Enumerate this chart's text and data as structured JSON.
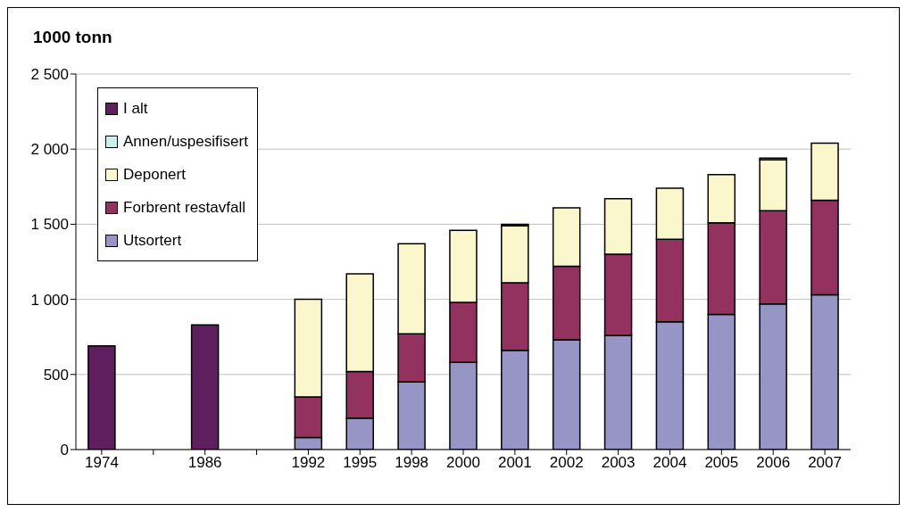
{
  "chart_data": {
    "type": "bar",
    "title": "1000 tonn",
    "stacked": true,
    "legend": "top left",
    "grid": "y",
    "categories": [
      "1974",
      null,
      "1986",
      null,
      "1992",
      "1995",
      "1998",
      "2000",
      "2001",
      "2002",
      "2003",
      "2004",
      "2005",
      "2006",
      "2007"
    ],
    "ylim": [
      0,
      2500
    ],
    "yticks": [
      0,
      {
        "value": 500,
        "label": "500"
      },
      {
        "value": 1000,
        "label": "1 000"
      },
      {
        "value": 1500,
        "label": "1 500"
      },
      {
        "value": 2000,
        "label": "2 000"
      },
      {
        "value": 2500,
        "label": "2 500"
      }
    ],
    "series": [
      {
        "name": "Utsortert",
        "color": "#9795c6",
        "values": [
          null,
          null,
          null,
          null,
          80,
          210,
          450,
          580,
          660,
          730,
          760,
          850,
          900,
          970,
          1030
        ]
      },
      {
        "name": "Forbrent restavfall",
        "color": "#93325e",
        "values": [
          null,
          null,
          null,
          null,
          270,
          310,
          320,
          400,
          450,
          490,
          540,
          550,
          610,
          620,
          630
        ]
      },
      {
        "name": "Deponert",
        "color": "#fbf7cc",
        "values": [
          null,
          null,
          null,
          null,
          650,
          650,
          600,
          480,
          380,
          390,
          370,
          340,
          320,
          340,
          380
        ]
      },
      {
        "name": "Annen/uspesifisert",
        "color": "#cceeee",
        "values": [
          null,
          null,
          null,
          null,
          null,
          null,
          null,
          null,
          10,
          null,
          null,
          null,
          null,
          10,
          null
        ]
      },
      {
        "name": "I alt",
        "color": "#5f1f5f",
        "values": [
          690,
          null,
          830,
          null,
          null,
          null,
          null,
          null,
          null,
          null,
          null,
          null,
          null,
          null,
          null
        ]
      }
    ]
  }
}
